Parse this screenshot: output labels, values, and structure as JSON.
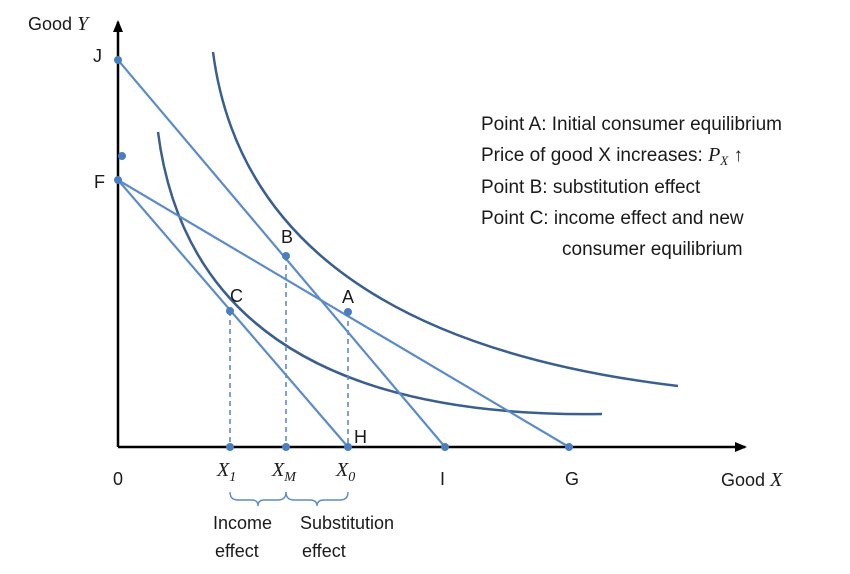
{
  "axes": {
    "y_label_word": "Good",
    "y_label_symbol": "Y",
    "x_label_word": "Good",
    "x_label_symbol": "X",
    "origin_label": "0"
  },
  "points": {
    "J": "J",
    "F": "F",
    "A": "A",
    "B": "B",
    "C": "C",
    "H": "H",
    "I": "I",
    "G": "G"
  },
  "x_ticks": {
    "x1_symbol": "X",
    "x1_sub": "1",
    "xm_symbol": "X",
    "xm_sub": "M",
    "x0_symbol": "X",
    "x0_sub": "0"
  },
  "effects": {
    "income_line1": "Income",
    "income_line2": "effect",
    "substitution_line1": "Substitution",
    "substitution_line2": "effect"
  },
  "notes": {
    "line1": "Point A: Initial consumer equilibrium",
    "line2_text": "Price of good X increases: ",
    "line2_symbol": "P",
    "line2_sub": "X",
    "line2_arrow": "↑",
    "line3": "Point B: substitution effect",
    "line4": "Point C: income effect and new",
    "line5": "consumer equilibrium"
  },
  "colors": {
    "budget_line": "#5B8CC8",
    "indifference_curve": "#3A5F8F",
    "axis": "#000000",
    "point": "#4A7EC0"
  }
}
